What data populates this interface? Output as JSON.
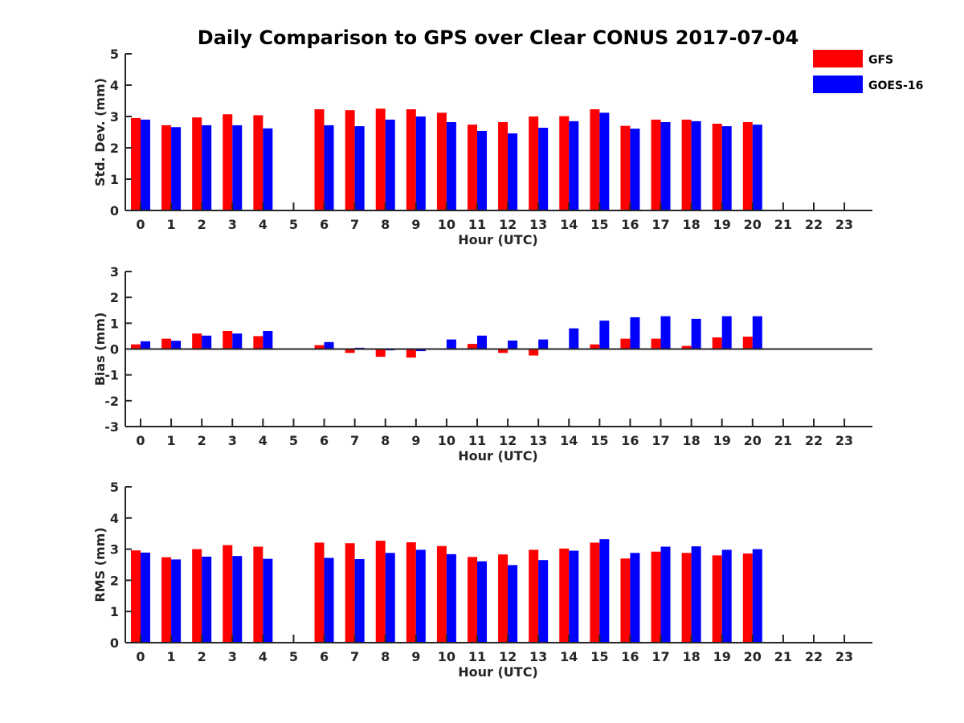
{
  "title": "Daily Comparison to GPS over Clear CONUS 2017-07-04",
  "legend": {
    "position": "top-right",
    "entries": [
      {
        "label": "GFS",
        "color": "#ff0000"
      },
      {
        "label": "GOES-16",
        "color": "#0000ff"
      }
    ]
  },
  "chart_data": [
    {
      "type": "bar",
      "name": "std-dev",
      "xlabel": "Hour (UTC)",
      "ylabel": "Std. Dev. (mm)",
      "ylim": [
        0,
        5
      ],
      "yticks": [
        "0",
        "1",
        "2",
        "3",
        "4",
        "5"
      ],
      "categories": [
        "0",
        "1",
        "2",
        "3",
        "4",
        "5",
        "6",
        "7",
        "8",
        "9",
        "10",
        "11",
        "12",
        "13",
        "14",
        "15",
        "16",
        "17",
        "18",
        "19",
        "20",
        "21",
        "22",
        "23"
      ],
      "series": [
        {
          "name": "GFS",
          "color": "#ff0000",
          "values": [
            2.95,
            2.72,
            2.97,
            3.07,
            3.04,
            null,
            3.23,
            3.2,
            3.25,
            3.23,
            3.12,
            2.74,
            2.82,
            3.0,
            3.01,
            3.23,
            2.7,
            2.9,
            2.9,
            2.77,
            2.82,
            null,
            null,
            null
          ]
        },
        {
          "name": "GOES-16",
          "color": "#0000ff",
          "values": [
            2.9,
            2.66,
            2.72,
            2.72,
            2.62,
            null,
            2.72,
            2.69,
            2.9,
            3.0,
            2.82,
            2.54,
            2.46,
            2.64,
            2.85,
            3.12,
            2.61,
            2.82,
            2.85,
            2.69,
            2.74,
            null,
            null,
            null
          ]
        }
      ]
    },
    {
      "type": "bar",
      "name": "bias",
      "xlabel": "Hour (UTC)",
      "ylabel": "Bias (mm)",
      "ylim": [
        -3,
        3
      ],
      "yticks": [
        "-3",
        "-2",
        "-1",
        "0",
        "1",
        "2",
        "3"
      ],
      "categories": [
        "0",
        "1",
        "2",
        "3",
        "4",
        "5",
        "6",
        "7",
        "8",
        "9",
        "10",
        "11",
        "12",
        "13",
        "14",
        "15",
        "16",
        "17",
        "18",
        "19",
        "20",
        "21",
        "22",
        "23"
      ],
      "series": [
        {
          "name": "GFS",
          "color": "#ff0000",
          "values": [
            0.18,
            0.4,
            0.6,
            0.7,
            0.5,
            null,
            0.15,
            -0.15,
            -0.3,
            -0.33,
            0.02,
            0.2,
            -0.15,
            -0.25,
            0.0,
            0.18,
            0.4,
            0.4,
            0.12,
            0.45,
            0.48,
            null,
            null,
            null
          ]
        },
        {
          "name": "GOES-16",
          "color": "#0000ff",
          "values": [
            0.3,
            0.32,
            0.52,
            0.6,
            0.7,
            null,
            0.27,
            0.05,
            -0.05,
            -0.08,
            0.37,
            0.52,
            0.33,
            0.37,
            0.8,
            1.1,
            1.23,
            1.27,
            1.17,
            1.27,
            1.27,
            null,
            null,
            null
          ]
        }
      ]
    },
    {
      "type": "bar",
      "name": "rms",
      "xlabel": "Hour (UTC)",
      "ylabel": "RMS (mm)",
      "ylim": [
        0,
        5
      ],
      "yticks": [
        "0",
        "1",
        "2",
        "3",
        "4",
        "5"
      ],
      "categories": [
        "0",
        "1",
        "2",
        "3",
        "4",
        "5",
        "6",
        "7",
        "8",
        "9",
        "10",
        "11",
        "12",
        "13",
        "14",
        "15",
        "16",
        "17",
        "18",
        "19",
        "20",
        "21",
        "22",
        "23"
      ],
      "series": [
        {
          "name": "GFS",
          "color": "#ff0000",
          "values": [
            2.96,
            2.74,
            3.0,
            3.13,
            3.08,
            null,
            3.21,
            3.19,
            3.27,
            3.22,
            3.1,
            2.75,
            2.83,
            2.98,
            3.02,
            3.21,
            2.7,
            2.92,
            2.88,
            2.8,
            2.86,
            null,
            null,
            null
          ]
        },
        {
          "name": "GOES-16",
          "color": "#0000ff",
          "values": [
            2.89,
            2.67,
            2.76,
            2.78,
            2.69,
            null,
            2.72,
            2.68,
            2.88,
            2.98,
            2.84,
            2.61,
            2.49,
            2.65,
            2.95,
            3.32,
            2.88,
            3.08,
            3.09,
            2.98,
            3.0,
            null,
            null,
            null
          ]
        }
      ]
    }
  ]
}
